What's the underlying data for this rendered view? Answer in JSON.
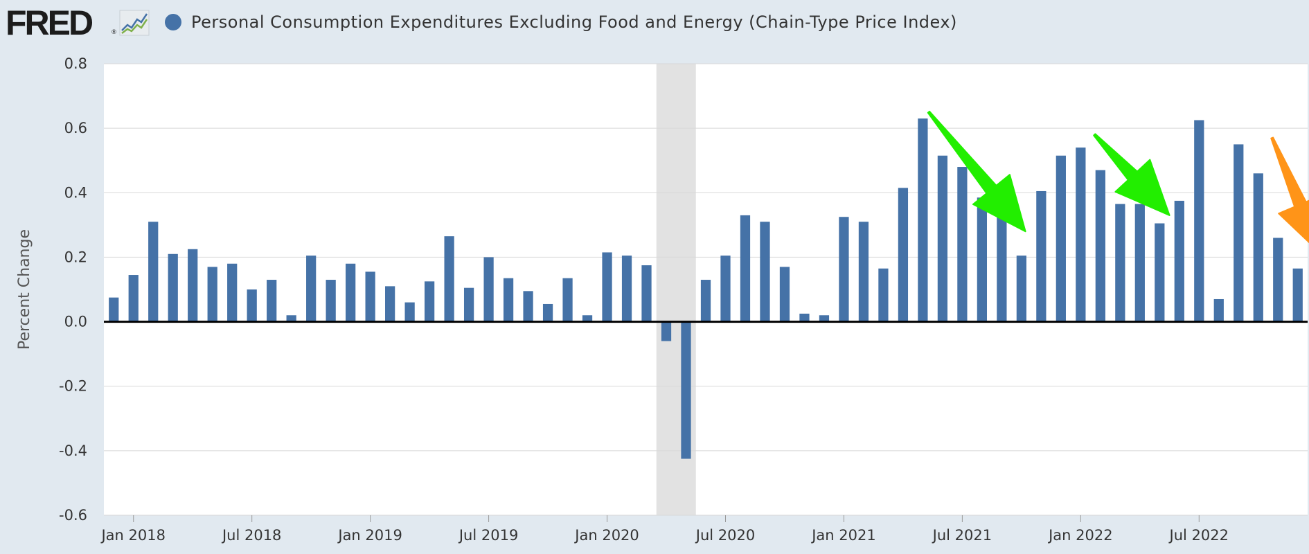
{
  "header": {
    "logo_text": "FRED",
    "logo_reg": "®",
    "title": "Personal Consumption Expenditures Excluding Food and Energy (Chain-Type Price Index)"
  },
  "colors": {
    "bar": "#4572a7",
    "recession": "#e2e2e2",
    "green_arrow": "#22ee00",
    "orange_arrow": "#ff9418",
    "grid": "#d8d8d8",
    "zero_line": "#000000"
  },
  "chart_data": {
    "type": "bar",
    "title": "Personal Consumption Expenditures Excluding Food and Energy (Chain-Type Price Index)",
    "xlabel": "",
    "ylabel": "Percent Change",
    "ylim": [
      -0.6,
      0.8
    ],
    "yticks": [
      "0.8",
      "0.6",
      "0.4",
      "0.2",
      "0.0",
      "-0.2",
      "-0.4",
      "-0.6"
    ],
    "ytick_values": [
      0.8,
      0.6,
      0.4,
      0.2,
      0.0,
      -0.2,
      -0.4,
      -0.6
    ],
    "first_period": "2017-12",
    "xticks": [
      {
        "label": "Jan 2018",
        "index": 1
      },
      {
        "label": "Jul 2018",
        "index": 7
      },
      {
        "label": "Jan 2019",
        "index": 13
      },
      {
        "label": "Jul 2019",
        "index": 19
      },
      {
        "label": "Jan 2020",
        "index": 25
      },
      {
        "label": "Jul 2020",
        "index": 31
      },
      {
        "label": "Jan 2021",
        "index": 37
      },
      {
        "label": "Jul 2021",
        "index": 43
      },
      {
        "label": "Jan 2022",
        "index": 49
      },
      {
        "label": "Jul 2022",
        "index": 55
      }
    ],
    "values": [
      0.075,
      0.145,
      0.31,
      0.21,
      0.225,
      0.17,
      0.18,
      0.1,
      0.13,
      0.02,
      0.205,
      0.13,
      0.18,
      0.155,
      0.11,
      0.06,
      0.125,
      0.265,
      0.105,
      0.2,
      0.135,
      0.095,
      0.055,
      0.135,
      0.02,
      0.215,
      0.205,
      0.175,
      -0.06,
      -0.425,
      0.13,
      0.205,
      0.33,
      0.31,
      0.17,
      0.025,
      0.02,
      0.325,
      0.31,
      0.165,
      0.415,
      0.63,
      0.515,
      0.48,
      0.385,
      0.33,
      0.205,
      0.405,
      0.515,
      0.54,
      0.47,
      0.365,
      0.365,
      0.305,
      0.375,
      0.625,
      0.07,
      0.55,
      0.46,
      0.26,
      0.165
    ],
    "recession": {
      "start_index": 27.5,
      "end_index": 29.5
    },
    "annotations": [
      {
        "type": "arrow",
        "color": "green",
        "from": [
          41.3,
          0.65
        ],
        "to": [
          46.2,
          0.28
        ]
      },
      {
        "type": "arrow",
        "color": "green",
        "from": [
          49.7,
          0.58
        ],
        "to": [
          53.5,
          0.33
        ]
      },
      {
        "type": "arrow",
        "color": "orange",
        "from": [
          58.7,
          0.57
        ],
        "to": [
          61.2,
          0.21
        ]
      }
    ]
  }
}
